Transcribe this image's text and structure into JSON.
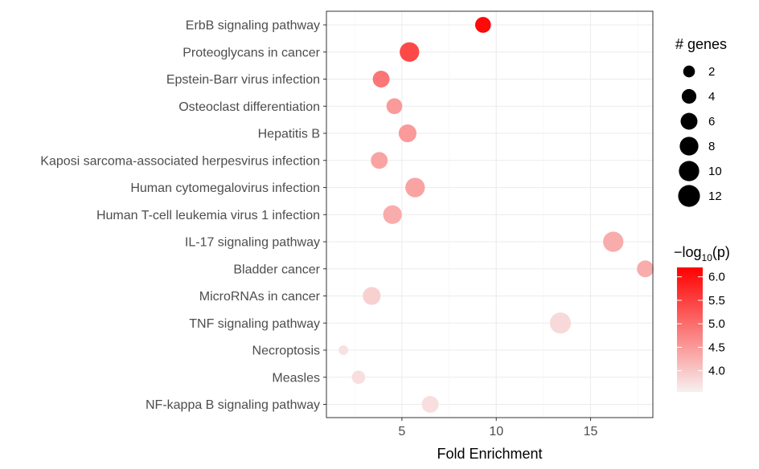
{
  "chart_data": {
    "type": "scatter",
    "xlabel": "Fold Enrichment",
    "xlim": [
      1.0,
      18.3
    ],
    "x_ticks": [
      5,
      10,
      15
    ],
    "categories": [
      "ErbB signaling pathway",
      "Proteoglycans in cancer",
      "Epstein-Barr virus infection",
      "Osteoclast differentiation",
      "Hepatitis B",
      "Kaposi sarcoma-associated herpesvirus infection",
      "Human cytomegalovirus infection",
      "Human T-cell leukemia virus 1 infection",
      "IL-17 signaling pathway",
      "Bladder cancer",
      "MicroRNAs in cancer",
      "TNF signaling pathway",
      "Necroptosis",
      "Measles",
      "NF-kappa B signaling pathway"
    ],
    "points": [
      {
        "term": "ErbB signaling pathway",
        "fold_enrichment": 9.3,
        "genes": 5,
        "neg_log10_p": 6.1
      },
      {
        "term": "Proteoglycans in cancer",
        "fold_enrichment": 5.4,
        "genes": 9,
        "neg_log10_p": 5.4
      },
      {
        "term": "Epstein-Barr virus infection",
        "fold_enrichment": 3.9,
        "genes": 6,
        "neg_log10_p": 4.9
      },
      {
        "term": "Osteoclast differentiation",
        "fold_enrichment": 4.6,
        "genes": 5,
        "neg_log10_p": 4.5
      },
      {
        "term": "Hepatitis B",
        "fold_enrichment": 5.3,
        "genes": 7,
        "neg_log10_p": 4.5
      },
      {
        "term": "Kaposi sarcoma-associated herpesvirus infection",
        "fold_enrichment": 3.8,
        "genes": 6,
        "neg_log10_p": 4.4
      },
      {
        "term": "Human cytomegalovirus infection",
        "fold_enrichment": 5.7,
        "genes": 9,
        "neg_log10_p": 4.4
      },
      {
        "term": "Human T-cell leukemia virus 1 infection",
        "fold_enrichment": 4.5,
        "genes": 8,
        "neg_log10_p": 4.3
      },
      {
        "term": "IL-17 signaling pathway",
        "fold_enrichment": 16.2,
        "genes": 10,
        "neg_log10_p": 4.3
      },
      {
        "term": "Bladder cancer",
        "fold_enrichment": 17.9,
        "genes": 6,
        "neg_log10_p": 4.3
      },
      {
        "term": "MicroRNAs in cancer",
        "fold_enrichment": 3.4,
        "genes": 7,
        "neg_log10_p": 3.9
      },
      {
        "term": "TNF signaling pathway",
        "fold_enrichment": 13.4,
        "genes": 11,
        "neg_log10_p": 3.8
      },
      {
        "term": "Necroptosis",
        "fold_enrichment": 1.9,
        "genes": 1,
        "neg_log10_p": 3.7
      },
      {
        "term": "Measles",
        "fold_enrichment": 2.7,
        "genes": 3,
        "neg_log10_p": 3.75
      },
      {
        "term": "NF-kappa B signaling pathway",
        "fold_enrichment": 6.5,
        "genes": 6,
        "neg_log10_p": 3.75
      }
    ],
    "size_legend": {
      "title": "# genes",
      "values": [
        2,
        4,
        6,
        8,
        10,
        12
      ]
    },
    "color_legend": {
      "title_prefix": "−log",
      "title_sub": "10",
      "title_suffix": "(p)",
      "range": [
        3.55,
        6.2
      ],
      "ticks": [
        4.0,
        4.5,
        5.0,
        5.5,
        6.0
      ],
      "low_color": "#f7f0f0",
      "high_color": "#ff0000"
    },
    "grid": true,
    "panel_background": "#ffffff",
    "grid_color": "#ebebeb"
  }
}
